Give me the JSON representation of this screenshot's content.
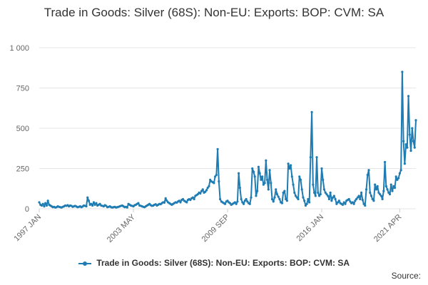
{
  "title": "Trade in Goods: Silver (68S): Non-EU: Exports: BOP: CVM: SA",
  "legend_label": "Trade in Goods: Silver (68S): Non-EU: Exports: BOP: CVM: SA",
  "source_label": "Source:",
  "colors": {
    "series": "#1f7cb3",
    "grid": "#e6e6e6",
    "text": "#333333",
    "axis_text": "#666666"
  },
  "chart_data": {
    "type": "line",
    "title": "Trade in Goods: Silver (68S): Non-EU: Exports: BOP: CVM: SA",
    "xlabel": "",
    "ylabel": "",
    "ylim": [
      0,
      1000
    ],
    "yticks": [
      0,
      250,
      500,
      750,
      1000
    ],
    "ytick_labels": [
      "0",
      "250",
      "500",
      "750",
      "1 000"
    ],
    "x_start": "1997 JAN",
    "x_end": "2021 APR",
    "xtick_labels": [
      "1997 JAN",
      "2003 MAY",
      "2009 SEP",
      "2016 JAN",
      "2021 APR"
    ],
    "xtick_indices": [
      0,
      76,
      152,
      228,
      291
    ],
    "grid": true,
    "legend_position": "bottom",
    "series": [
      {
        "name": "Trade in Goods: Silver (68S): Non-EU: Exports: BOP: CVM: SA",
        "values": [
          40,
          25,
          20,
          30,
          15,
          35,
          20,
          50,
          25,
          20,
          15,
          10,
          12,
          8,
          10,
          15,
          12,
          10,
          8,
          12,
          15,
          20,
          18,
          22,
          15,
          20,
          18,
          12,
          15,
          18,
          14,
          10,
          12,
          15,
          10,
          14,
          20,
          18,
          15,
          70,
          50,
          25,
          30,
          20,
          40,
          25,
          35,
          20,
          25,
          30,
          20,
          18,
          15,
          22,
          18,
          10,
          12,
          15,
          10,
          8,
          10,
          12,
          8,
          10,
          12,
          15,
          18,
          20,
          15,
          10,
          12,
          8,
          30,
          25,
          20,
          18,
          15,
          22,
          25,
          30,
          35,
          20,
          18,
          15,
          12,
          10,
          15,
          20,
          25,
          30,
          22,
          18,
          20,
          25,
          28,
          20,
          25,
          30,
          28,
          35,
          40,
          38,
          65,
          50,
          40,
          35,
          30,
          25,
          30,
          35,
          40,
          38,
          45,
          50,
          40,
          55,
          60,
          50,
          45,
          40,
          55,
          60,
          55,
          65,
          70,
          60,
          80,
          85,
          90,
          100,
          95,
          110,
          120,
          100,
          105,
          115,
          130,
          140,
          180,
          170,
          165,
          160,
          200,
          210,
          370,
          170,
          60,
          45,
          40,
          35,
          30,
          45,
          50,
          40,
          35,
          25,
          30,
          35,
          40,
          30,
          45,
          220,
          130,
          60,
          40,
          30,
          50,
          60,
          45,
          35,
          30,
          70,
          250,
          230,
          200,
          80,
          110,
          260,
          220,
          180,
          200,
          150,
          160,
          300,
          180,
          120,
          240,
          160,
          60,
          45,
          70,
          120,
          90,
          75,
          60,
          40,
          35,
          100,
          110,
          60,
          50,
          280,
          250,
          270,
          200,
          150,
          100,
          80,
          70,
          60,
          200,
          180,
          120,
          70,
          50,
          20,
          30,
          60,
          40,
          320,
          600,
          150,
          100,
          80,
          320,
          100,
          80,
          90,
          250,
          180,
          120,
          100,
          90,
          80,
          60,
          100,
          50,
          70,
          80,
          60,
          30,
          40,
          50,
          35,
          30,
          25,
          40,
          30,
          50,
          55,
          60,
          45,
          35,
          40,
          30,
          50,
          60,
          70,
          80,
          60,
          100,
          55,
          30,
          20,
          120,
          210,
          240,
          100,
          80,
          60,
          50,
          150,
          120,
          140,
          100,
          90,
          80,
          60,
          110,
          290,
          140,
          120,
          100,
          90,
          150,
          110,
          140,
          130,
          200,
          180,
          190,
          220,
          240,
          850,
          420,
          280,
          400,
          380,
          700,
          460,
          360,
          500,
          420,
          380,
          550
        ]
      }
    ]
  }
}
